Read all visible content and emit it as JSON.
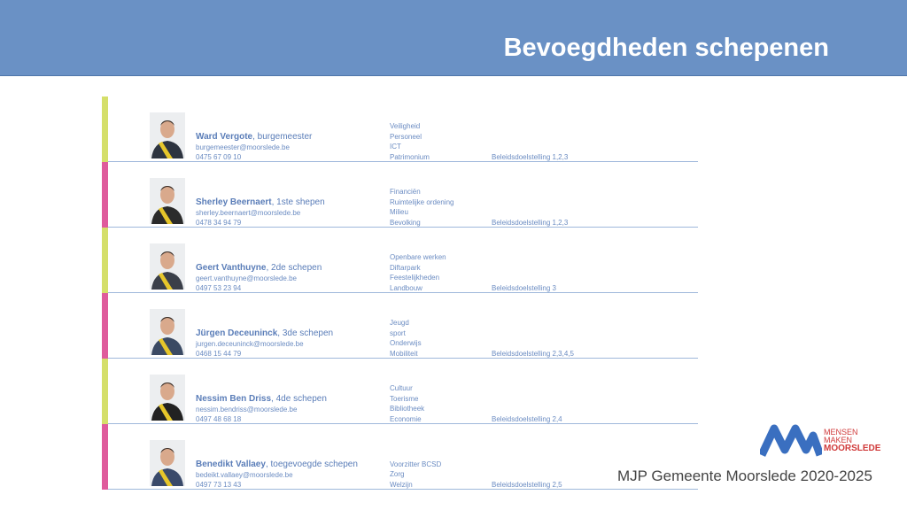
{
  "header": {
    "title": "Bevoegdheden schepenen"
  },
  "people": [
    {
      "name": "Ward Vergote",
      "role": ", burgemeester",
      "email": "burgemeester@moorslede.be",
      "phone": "0475 67 09 10",
      "duties": [
        "Veiligheid",
        "Personeel",
        "ICT",
        "Patrimonium"
      ],
      "goal": "Beleidsdoelstelling 1,2,3"
    },
    {
      "name": "Sherley Beernaert",
      "role": ", 1ste shepen",
      "email": "sherley.beernaert@moorslede.be",
      "phone": "0478 34 94 79",
      "duties": [
        "Financiën",
        "Ruimtelijke ordening",
        "Milieu",
        "Bevolking"
      ],
      "goal": "Beleidsdoelstelling 1,2,3"
    },
    {
      "name": "Geert Vanthuyne",
      "role": ", 2de schepen",
      "email": "geert.vanthuyne@moorslede.be",
      "phone": "0497 53 23 94",
      "duties": [
        "Openbare werken",
        "Diftarpark",
        "Feestelijkheden",
        "Landbouw"
      ],
      "goal": "Beleidsdoelstelling 3"
    },
    {
      "name": "Jürgen Deceuninck",
      "role": ", 3de schepen",
      "email": "jurgen.deceuninck@moorslede.be",
      "phone": "0468 15 44 79",
      "duties": [
        "Jeugd",
        "sport",
        "Onderwijs",
        "Mobiliteit"
      ],
      "goal": "Beleidsdoelstelling 2,3,4,5"
    },
    {
      "name": "Nessim Ben Driss",
      "role": ", 4de schepen",
      "email": "nessim.bendriss@moorslede.be",
      "phone": "0497 48 68 18",
      "duties": [
        "Cultuur",
        "Toerisme",
        "Bibliotheek",
        "Economie"
      ],
      "goal": "Beleidsdoelstelling 2,4"
    },
    {
      "name": "Benedikt Vallaey",
      "role": ", toegevoegde schepen",
      "email": "bedeikt.vallaey@moorslede.be",
      "phone": "0497 73 13 43",
      "duties": [
        "Voorzitter BCSD",
        "Zorg",
        "Welzijn"
      ],
      "goal": "Beleidsdoelstelling 2,5"
    }
  ],
  "logo": {
    "lines": [
      "MENSEN",
      "MAKEN",
      "MOORSLEDE"
    ]
  },
  "footer": {
    "text": "MJP Gemeente Moorslede 2020-2025"
  }
}
